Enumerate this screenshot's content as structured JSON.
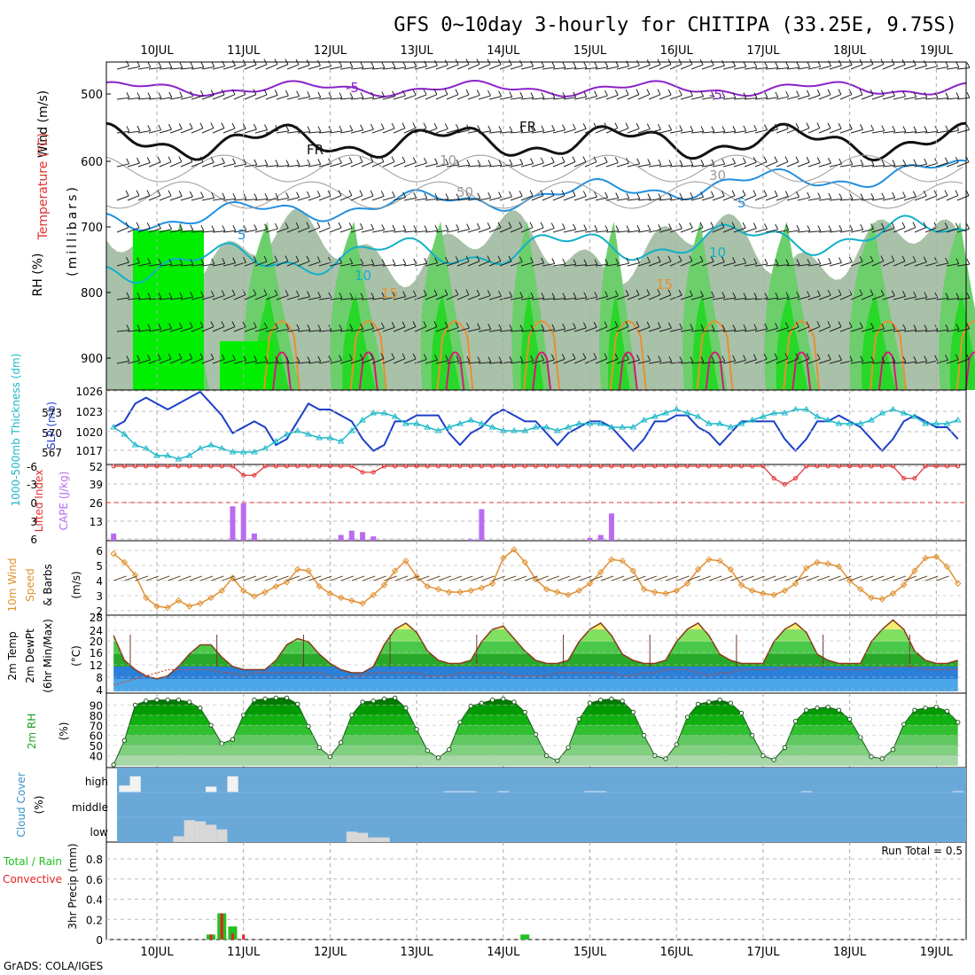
{
  "title": "GFS 0~10day 3-hourly for CHITIPA (33.25E, 9.75S)",
  "footer": "GrADS: COLA/IGES",
  "dates": [
    "10JUL",
    "11JUL",
    "12JUL",
    "13JUL",
    "14JUL",
    "15JUL",
    "16JUL",
    "17JUL",
    "18JUL",
    "19JUL"
  ],
  "colors": {
    "wet": "#00ee00",
    "rh_mid": "#6ccf6c",
    "rh_low": "#c9d5c9",
    "thickness": "#1ab8c8",
    "slp": "#1c3fc8",
    "cape": "#b96cf0",
    "lifted": "#e03030",
    "wind": "#e09030",
    "cloud": "#6aa8d8",
    "precip_total": "#22c022",
    "precip_conv": "#e82020"
  },
  "panels": {
    "upper": {
      "axis_labels": [
        "Wind (m/s)",
        "Temperature (°C)",
        "RH (%)"
      ],
      "ylabel": "(millibars)",
      "yticks": [
        "500",
        "600",
        "700",
        "800",
        "900"
      ],
      "contour_labels": [
        "-5",
        "-5",
        "FR",
        "FR",
        "10",
        "30",
        "50",
        "5",
        "5",
        "10",
        "10",
        "15",
        "15"
      ]
    },
    "pressure": {
      "left_label": "1000-500mb Thickness (dm)",
      "right_label": "SLP (mb)",
      "thickness_ticks": [
        "573",
        "570",
        "567"
      ],
      "slp_ticks": [
        "1026",
        "1023",
        "1020",
        "1017"
      ]
    },
    "instability": {
      "left_label": "Lifted Index",
      "right_label": "CAPE (J/kg)",
      "li_ticks": [
        "-6",
        "-3",
        "0",
        "3",
        "6"
      ],
      "cape_ticks": [
        "52",
        "39",
        "26",
        "13"
      ]
    },
    "wind": {
      "label_a": "10m Wind",
      "label_b": "Speed",
      "label_c": "& Barbs",
      "label_d": "(m/s)",
      "yticks": [
        "6",
        "5",
        "4",
        "3",
        "2"
      ]
    },
    "temp": {
      "label_a": "2m Temp",
      "label_b": "2m DewPt",
      "label_c": "(6hr Min/Max)",
      "label_d": "(°C)",
      "yticks": [
        "28",
        "24",
        "20",
        "16",
        "12",
        "8",
        "4"
      ]
    },
    "rh": {
      "label": "2m RH",
      "unit": "(%)",
      "yticks": [
        "90",
        "80",
        "70",
        "60",
        "50",
        "40"
      ]
    },
    "cloud": {
      "label": "Cloud Cover",
      "unit": "(%)",
      "levels": [
        "high",
        "middle",
        "low"
      ]
    },
    "precip": {
      "label_a": "Total / Rain",
      "label_b": "Convective",
      "ylabel": "3hr Precip (mm)",
      "yticks": [
        "0.8",
        "0.6",
        "0.4",
        "0.2",
        "0"
      ],
      "run_total": "Run Total = 0.5"
    }
  },
  "chart_data": [
    {
      "type": "line",
      "name": "SLP (mb)",
      "ylim": [
        1014,
        1026
      ],
      "x_step_hours": 3,
      "values": [
        1020,
        1021,
        1024,
        1025,
        1024,
        1023,
        1024,
        1025,
        1026,
        1024,
        1022,
        1019,
        1020,
        1021,
        1020,
        1017,
        1018,
        1021,
        1024,
        1023,
        1023,
        1022,
        1021,
        1018,
        1016,
        1017,
        1021,
        1021,
        1022,
        1022,
        1022,
        1019,
        1017,
        1019,
        1020,
        1022,
        1023,
        1022,
        1021,
        1021,
        1019,
        1017,
        1019,
        1020,
        1021,
        1021,
        1020,
        1018,
        1016,
        1018,
        1021,
        1021,
        1022,
        1022,
        1020,
        1019,
        1017,
        1019,
        1021,
        1021,
        1021,
        1021,
        1018,
        1016,
        1018,
        1021,
        1021,
        1022,
        1021,
        1020,
        1018,
        1016,
        1018,
        1021,
        1022,
        1021,
        1020,
        1020,
        1018,
        1016,
        1017,
        1020,
        1021,
        1022,
        1022,
        1021,
        1019,
        1017,
        1018,
        1021,
        1022,
        1021,
        1021,
        1020,
        1019,
        1018,
        1020,
        1021,
        1021,
        1022,
        1021,
        1020
      ]
    },
    {
      "type": "line",
      "name": "1000-500mb Thickness (dm)",
      "ylim": [
        565,
        575
      ],
      "x_step_hours": 3,
      "values": [
        570,
        569,
        567.5,
        567,
        566,
        566,
        565.5,
        566,
        567,
        567.5,
        567,
        566.5,
        566.5,
        566.5,
        567,
        568,
        569,
        569.5,
        569,
        568.5,
        568.5,
        568,
        569.5,
        571,
        572,
        572,
        571.5,
        570.5,
        570.5,
        570,
        569.5,
        570,
        570.5,
        571,
        570.5,
        570,
        569.5,
        569.5,
        569.5,
        570,
        570,
        569.5,
        570,
        570.5,
        570.5,
        570.5,
        570,
        570,
        570,
        571,
        571.5,
        572,
        572.5,
        572,
        571.5,
        570.5,
        570.5,
        570,
        570.5,
        571,
        571.5,
        572,
        572,
        572.5,
        572.5,
        571.5,
        571,
        570.5,
        570.5,
        570.5,
        571,
        572,
        572.5,
        572,
        571.5,
        570.5,
        570.5,
        570.5,
        571,
        571.5,
        572,
        572.5,
        572.5,
        572,
        571.5,
        571.5,
        571.5,
        571.5,
        572,
        572,
        572,
        571.5,
        571,
        571,
        571,
        571,
        571.5,
        572,
        572.5,
        572.5,
        572.5
      ]
    },
    {
      "type": "bar",
      "name": "CAPE (J/kg)",
      "ylim": [
        0,
        52
      ],
      "x_step_hours": 3,
      "values": [
        5,
        0,
        0,
        0,
        0,
        0,
        0,
        0,
        0,
        0,
        0,
        24,
        26,
        5,
        0,
        0,
        0,
        0,
        0,
        0,
        0,
        4,
        7,
        6,
        3,
        0,
        0,
        0,
        0,
        0,
        0,
        0,
        0,
        1,
        22,
        0,
        0,
        0,
        0,
        0,
        0,
        0,
        0,
        0,
        2,
        4,
        19,
        0,
        0,
        0,
        0,
        0,
        0,
        0,
        0,
        0,
        0,
        0,
        0,
        0,
        0,
        0,
        0,
        0,
        0,
        0,
        0,
        0,
        0,
        0,
        0,
        0,
        0,
        0,
        0,
        0,
        0,
        0,
        0,
        0,
        0,
        0,
        0,
        0,
        0,
        0,
        0,
        0,
        0,
        0,
        0,
        0,
        0,
        0,
        0,
        0,
        0,
        0,
        0,
        0,
        0,
        0
      ]
    },
    {
      "type": "line",
      "name": "Lifted Index",
      "ylim": [
        -6,
        6
      ],
      "x_step_hours": 3,
      "values": [
        6,
        6,
        6,
        6,
        6,
        6,
        6,
        6,
        6,
        6,
        6,
        6,
        4.5,
        4.5,
        6,
        6,
        6,
        6,
        6,
        6,
        6,
        6,
        6,
        5,
        5,
        6,
        6,
        6,
        6,
        6,
        6,
        6,
        6,
        6,
        6,
        6,
        6,
        6,
        6,
        6,
        6,
        6,
        6,
        6,
        6,
        6,
        6,
        6,
        6,
        6,
        6,
        6,
        6,
        6,
        6,
        6,
        6,
        6,
        6,
        6,
        6,
        4,
        3,
        4,
        6,
        6,
        6,
        6,
        6,
        6,
        6,
        6,
        6,
        4,
        4,
        6,
        6,
        6,
        6,
        6,
        6,
        6,
        6,
        6,
        6,
        6,
        6,
        3,
        0.5,
        1.5,
        3,
        6,
        6,
        6,
        6,
        6,
        6,
        6,
        6,
        6,
        6
      ]
    },
    {
      "type": "line",
      "name": "10m Wind Speed (m/s)",
      "ylim": [
        1.5,
        6.5
      ],
      "x_step_hours": 3,
      "values": [
        5.7,
        5.1,
        4.2,
        2.6,
        2.0,
        1.9,
        2.4,
        2.0,
        2.2,
        2.6,
        3.1,
        4.0,
        3.1,
        2.7,
        3.0,
        3.4,
        3.7,
        4.6,
        4.5,
        3.4,
        2.9,
        2.6,
        2.4,
        2.2,
        2.8,
        3.5,
        4.5,
        5.2,
        4.1,
        3.4,
        3.2,
        3.0,
        3.0,
        3.1,
        3.3,
        3.6,
        5.4,
        6.0,
        5.1,
        3.9,
        3.2,
        3.0,
        2.8,
        3.1,
        3.6,
        4.4,
        5.3,
        5.2,
        4.5,
        3.2,
        3.0,
        2.9,
        3.1,
        3.6,
        4.6,
        5.3,
        5.2,
        4.6,
        3.5,
        3.1,
        2.9,
        2.8,
        3.1,
        3.6,
        4.7,
        5.1,
        5.0,
        4.8,
        3.8,
        3.2,
        2.6,
        2.5,
        2.9,
        3.5,
        4.5,
        5.4,
        5.5,
        4.8,
        3.6,
        3.0,
        2.8,
        3.0,
        3.4,
        4.7,
        5.5,
        5.0,
        4.3,
        3.3,
        3.0,
        2.8,
        2.5,
        2.4,
        2.7,
        3.2,
        4.0,
        5.1,
        6.0,
        5.5,
        4.9,
        3.6,
        2.2,
        2.1,
        1.9,
        3.8,
        5.4
      ]
    },
    {
      "type": "area",
      "name": "2m Temp (°C)",
      "ylim": [
        4,
        28
      ],
      "x_step_hours": 3,
      "values": [
        22,
        14,
        11,
        9,
        8,
        9,
        12,
        16,
        19,
        19,
        15,
        12,
        11,
        11,
        11,
        14,
        19,
        21,
        20,
        16,
        13,
        11,
        10,
        10,
        12,
        19,
        24,
        26,
        23,
        17,
        14,
        13,
        13,
        14,
        20,
        24,
        25,
        21,
        17,
        14,
        13,
        13,
        14,
        20,
        24,
        26,
        22,
        16,
        14,
        13,
        13,
        14,
        20,
        24,
        26,
        22,
        16,
        14,
        13,
        13,
        13,
        20,
        24,
        26,
        23,
        16,
        14,
        13,
        13,
        13,
        20,
        24,
        27,
        24,
        17,
        14,
        13,
        13,
        14,
        21,
        26,
        27,
        24,
        16,
        13,
        13,
        13,
        14,
        21,
        24,
        27,
        24,
        17,
        14,
        12,
        11,
        11,
        19
      ]
    },
    {
      "type": "line",
      "name": "2m DewPt (°C)",
      "ylim": [
        4,
        28
      ],
      "x_step_hours": 3,
      "values": [
        6,
        7,
        8,
        9,
        10,
        11,
        11,
        11,
        11,
        11,
        10,
        10,
        9,
        10,
        10,
        10,
        10,
        10,
        10,
        10,
        9,
        8,
        9,
        9,
        10,
        10,
        10,
        10,
        10,
        9,
        9,
        9,
        10,
        10,
        10,
        10,
        10,
        9,
        9,
        9,
        9,
        10,
        10,
        10,
        10,
        10,
        10,
        9,
        9,
        10,
        10,
        11,
        11,
        11,
        10,
        9,
        10,
        10,
        11,
        11,
        11,
        11,
        12,
        12,
        12,
        12,
        11,
        11,
        11,
        11,
        11,
        12,
        12,
        12,
        12,
        11,
        11,
        11,
        11,
        11,
        11,
        11,
        11,
        11,
        10,
        10,
        10,
        10,
        10,
        11,
        11,
        10,
        10,
        10,
        10,
        10,
        10,
        10
      ]
    },
    {
      "type": "area",
      "name": "2m RH (%)",
      "ylim": [
        30,
        100
      ],
      "x_step_hours": 3,
      "values": [
        31,
        55,
        90,
        94,
        95,
        95,
        95,
        93,
        87,
        70,
        52,
        56,
        80,
        95,
        96,
        97,
        97,
        91,
        69,
        48,
        39,
        53,
        80,
        93,
        94,
        96,
        97,
        87,
        66,
        45,
        38,
        46,
        73,
        89,
        92,
        95,
        96,
        93,
        83,
        61,
        40,
        35,
        48,
        76,
        92,
        95,
        96,
        94,
        83,
        60,
        40,
        37,
        51,
        78,
        91,
        93,
        95,
        92,
        82,
        60,
        40,
        36,
        48,
        74,
        85,
        87,
        88,
        85,
        76,
        58,
        39,
        37,
        46,
        71,
        85,
        87,
        88,
        84,
        73,
        56,
        40,
        36,
        48,
        73,
        87,
        91,
        93,
        91,
        81,
        58,
        41,
        36,
        47,
        71,
        85,
        90,
        94,
        92,
        84,
        60,
        31
      ]
    },
    {
      "type": "bar",
      "name": "High Cloud Cover (%)",
      "ylim": [
        0,
        100
      ],
      "x_step_hours": 3,
      "values": [
        10,
        30,
        70,
        0,
        0,
        0,
        0,
        0,
        0,
        25,
        0,
        70,
        0,
        0,
        0,
        0,
        0,
        0,
        0,
        0,
        0,
        0,
        0,
        0,
        0,
        0,
        0,
        0,
        0,
        0,
        0,
        5,
        5,
        5,
        0,
        0,
        5,
        0,
        0,
        0,
        0,
        0,
        0,
        0,
        5,
        5,
        0,
        0,
        0,
        0,
        0,
        0,
        0,
        0,
        0,
        0,
        0,
        0,
        0,
        0,
        0,
        0,
        0,
        0,
        5,
        0,
        0,
        0,
        0,
        0,
        0,
        0,
        0,
        0,
        0,
        0,
        0,
        0,
        5,
        0,
        0,
        70,
        30,
        90,
        20,
        0,
        0,
        0,
        5,
        0,
        0,
        0,
        0,
        0,
        0,
        30,
        0,
        0,
        0,
        0,
        0,
        0,
        60,
        40,
        20,
        5
      ]
    },
    {
      "type": "bar",
      "name": "Low Cloud Cover (%)",
      "ylim": [
        0,
        100
      ],
      "x_step_hours": 3,
      "values": [
        0,
        0,
        0,
        0,
        0,
        0,
        25,
        95,
        90,
        75,
        55,
        0,
        0,
        0,
        0,
        0,
        0,
        0,
        0,
        0,
        0,
        0,
        45,
        40,
        20,
        20,
        0,
        0,
        0,
        0,
        0,
        0,
        0,
        0,
        0,
        0,
        0,
        0,
        0,
        0,
        0,
        0,
        0,
        0,
        0,
        0,
        0,
        0,
        0,
        0,
        0,
        0,
        0,
        0,
        0,
        0,
        0,
        0,
        0,
        0,
        0,
        0,
        0,
        0,
        0,
        0,
        0,
        0,
        0,
        0,
        0,
        0,
        0,
        0,
        0,
        0,
        0,
        0,
        0,
        0,
        0,
        0,
        0,
        0,
        0,
        0,
        0,
        0,
        0,
        0,
        0,
        0,
        0,
        0,
        40,
        0,
        0,
        0,
        0,
        0,
        0,
        0,
        0,
        0,
        0,
        0
      ]
    },
    {
      "type": "bar",
      "name": "3hr Precip Total (mm)",
      "ylim": [
        0,
        0.95
      ],
      "x_step_hours": 3,
      "values": [
        0,
        0,
        0,
        0,
        0,
        0,
        0,
        0,
        0,
        0.05,
        0.26,
        0.13,
        0,
        0,
        0,
        0,
        0,
        0,
        0,
        0,
        0,
        0,
        0,
        0,
        0,
        0,
        0,
        0,
        0,
        0,
        0,
        0,
        0,
        0,
        0,
        0,
        0,
        0,
        0.05,
        0,
        0,
        0,
        0,
        0,
        0,
        0,
        0,
        0,
        0,
        0,
        0,
        0,
        0,
        0,
        0,
        0,
        0,
        0,
        0,
        0,
        0,
        0,
        0,
        0,
        0,
        0,
        0,
        0,
        0,
        0,
        0,
        0,
        0,
        0,
        0,
        0,
        0,
        0,
        0,
        0,
        0,
        0,
        0,
        0,
        0,
        0,
        0,
        0,
        0,
        0,
        0,
        0,
        0,
        0,
        0,
        0,
        0,
        0,
        0,
        0,
        0
      ]
    },
    {
      "type": "bar",
      "name": "3hr Precip Convective (mm)",
      "ylim": [
        0,
        0.95
      ],
      "x_step_hours": 3,
      "values": [
        0,
        0,
        0,
        0,
        0,
        0,
        0,
        0,
        0,
        0.05,
        0.26,
        0.06,
        0.05,
        0,
        0,
        0,
        0,
        0,
        0,
        0,
        0,
        0,
        0,
        0,
        0,
        0,
        0,
        0,
        0,
        0,
        0,
        0,
        0,
        0,
        0,
        0,
        0,
        0,
        0,
        0,
        0,
        0,
        0,
        0,
        0,
        0,
        0,
        0,
        0,
        0,
        0,
        0,
        0,
        0,
        0,
        0,
        0,
        0,
        0,
        0,
        0,
        0,
        0,
        0,
        0,
        0,
        0,
        0,
        0,
        0,
        0,
        0,
        0,
        0,
        0,
        0,
        0,
        0,
        0,
        0,
        0,
        0,
        0,
        0,
        0,
        0,
        0,
        0,
        0,
        0,
        0,
        0,
        0,
        0,
        0,
        0,
        0,
        0,
        0,
        0,
        0,
        0
      ]
    }
  ]
}
